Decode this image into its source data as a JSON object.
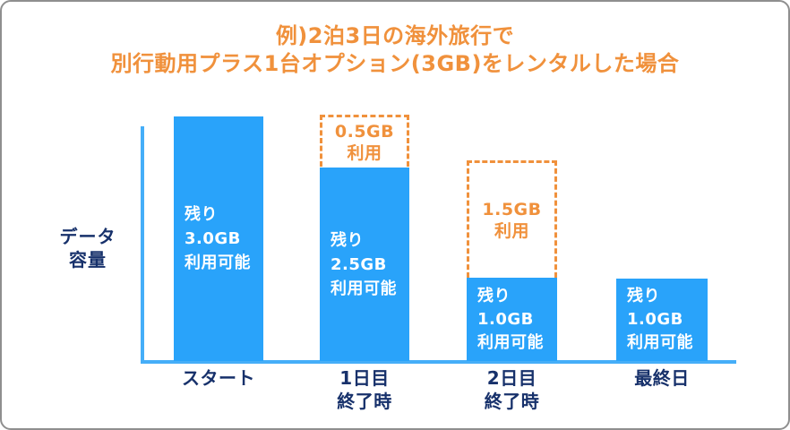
{
  "title": {
    "line1": "例)2泊3日の海外旅行で",
    "line2": "別行動用プラス1台オプション(3GB)をレンタルした場合"
  },
  "y_axis": {
    "label_line1": "データ",
    "label_line2": "容量"
  },
  "bars": [
    {
      "lines": [
        "残り",
        "3.0GB",
        "利用可能"
      ],
      "category": [
        "スタート",
        ""
      ]
    },
    {
      "lines": [
        "残り",
        "2.5GB",
        "利用可能"
      ],
      "category": [
        "1日目",
        "終了時"
      ]
    },
    {
      "lines": [
        "残り",
        "1.0GB",
        "利用可能"
      ],
      "category": [
        "2日目",
        "終了時"
      ]
    },
    {
      "lines": [
        "残り",
        "1.0GB",
        "利用可能"
      ],
      "category": [
        "最終日",
        ""
      ]
    }
  ],
  "used_overlays": [
    {
      "lines": [
        "0.5GB",
        "利用"
      ]
    },
    {
      "lines": [
        "1.5GB",
        "利用"
      ]
    }
  ],
  "colors": {
    "bar_blue": "#29A3FA",
    "axis_blue": "#45AEF8",
    "accent_orange": "#F0913C",
    "navy_text": "#17316B",
    "bar_text": "#FFFFFF"
  },
  "chart_data": {
    "type": "bar",
    "title": "例)2泊3日の海外旅行で 別行動用プラス1台オプション(3GB)をレンタルした場合",
    "categories": [
      "スタート",
      "1日目終了時",
      "2日目終了時",
      "最終日"
    ],
    "series": [
      {
        "name": "残り利用可能 (GB)",
        "values": [
          3.0,
          2.5,
          1.0,
          1.0
        ]
      },
      {
        "name": "利用 (GB)",
        "values": [
          0,
          0.5,
          1.5,
          0
        ]
      }
    ],
    "bar_labels": [
      "残り3.0GB利用可能",
      "残り2.5GB利用可能",
      "残り1.0GB利用可能",
      "残り1.0GB利用可能"
    ],
    "overlay_labels": [
      "0.5GB利用",
      "1.5GB利用"
    ],
    "xlabel": "",
    "ylabel": "データ容量",
    "ylim": [
      0,
      3
    ],
    "grid": false,
    "legend": false
  }
}
